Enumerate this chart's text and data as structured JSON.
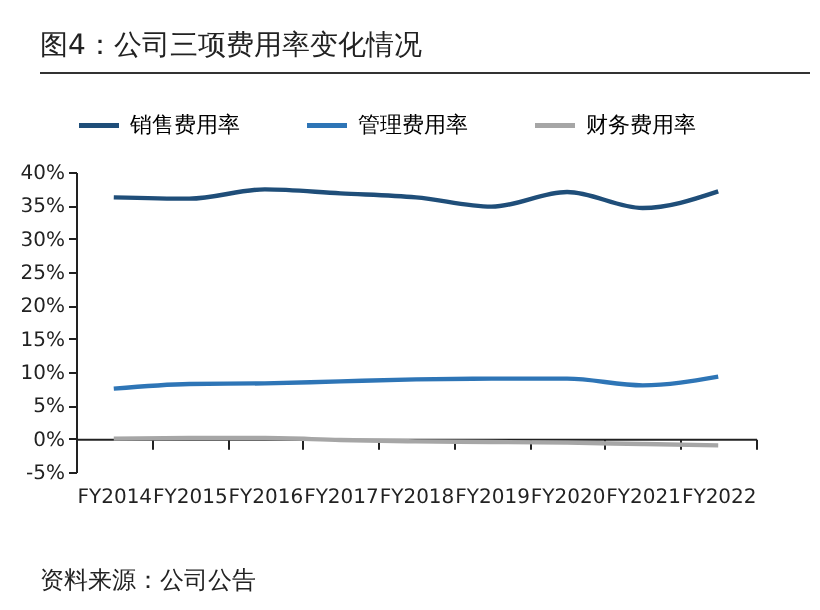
{
  "chart_data": {
    "type": "line",
    "title": "图4：公司三项费用率变化情况",
    "categories": [
      "FY2014",
      "FY2015",
      "FY2016",
      "FY2017",
      "FY2018",
      "FY2019",
      "FY2020",
      "FY2021",
      "FY2022"
    ],
    "series": [
      {
        "name": "销售费用率",
        "color": "#1f4e79",
        "values": [
          36.2,
          36.0,
          37.4,
          36.8,
          36.2,
          34.8,
          37.0,
          34.6,
          37.1
        ]
      },
      {
        "name": "管理费用率",
        "color": "#2e75b6",
        "values": [
          7.5,
          8.2,
          8.3,
          8.6,
          8.9,
          9.0,
          9.0,
          8.0,
          9.3
        ]
      },
      {
        "name": "财务费用率",
        "color": "#a6a6a6",
        "values": [
          0.0,
          0.1,
          0.1,
          -0.2,
          -0.4,
          -0.5,
          -0.6,
          -0.8,
          -1.0
        ]
      }
    ],
    "ylim": [
      -5,
      40
    ],
    "yticks": [
      {
        "value": -5,
        "label": "-5%"
      },
      {
        "value": 0,
        "label": "0%"
      },
      {
        "value": 5,
        "label": "5%"
      },
      {
        "value": 10,
        "label": "10%"
      },
      {
        "value": 15,
        "label": "15%"
      },
      {
        "value": 20,
        "label": "20%"
      },
      {
        "value": 25,
        "label": "25%"
      },
      {
        "value": 30,
        "label": "30%"
      },
      {
        "value": 35,
        "label": "35%"
      },
      {
        "value": 40,
        "label": "40%"
      }
    ],
    "legend": "top",
    "grid": false,
    "marker": "none",
    "line_style": "solid",
    "annotations": [
      "资料来源：公司公告"
    ]
  }
}
